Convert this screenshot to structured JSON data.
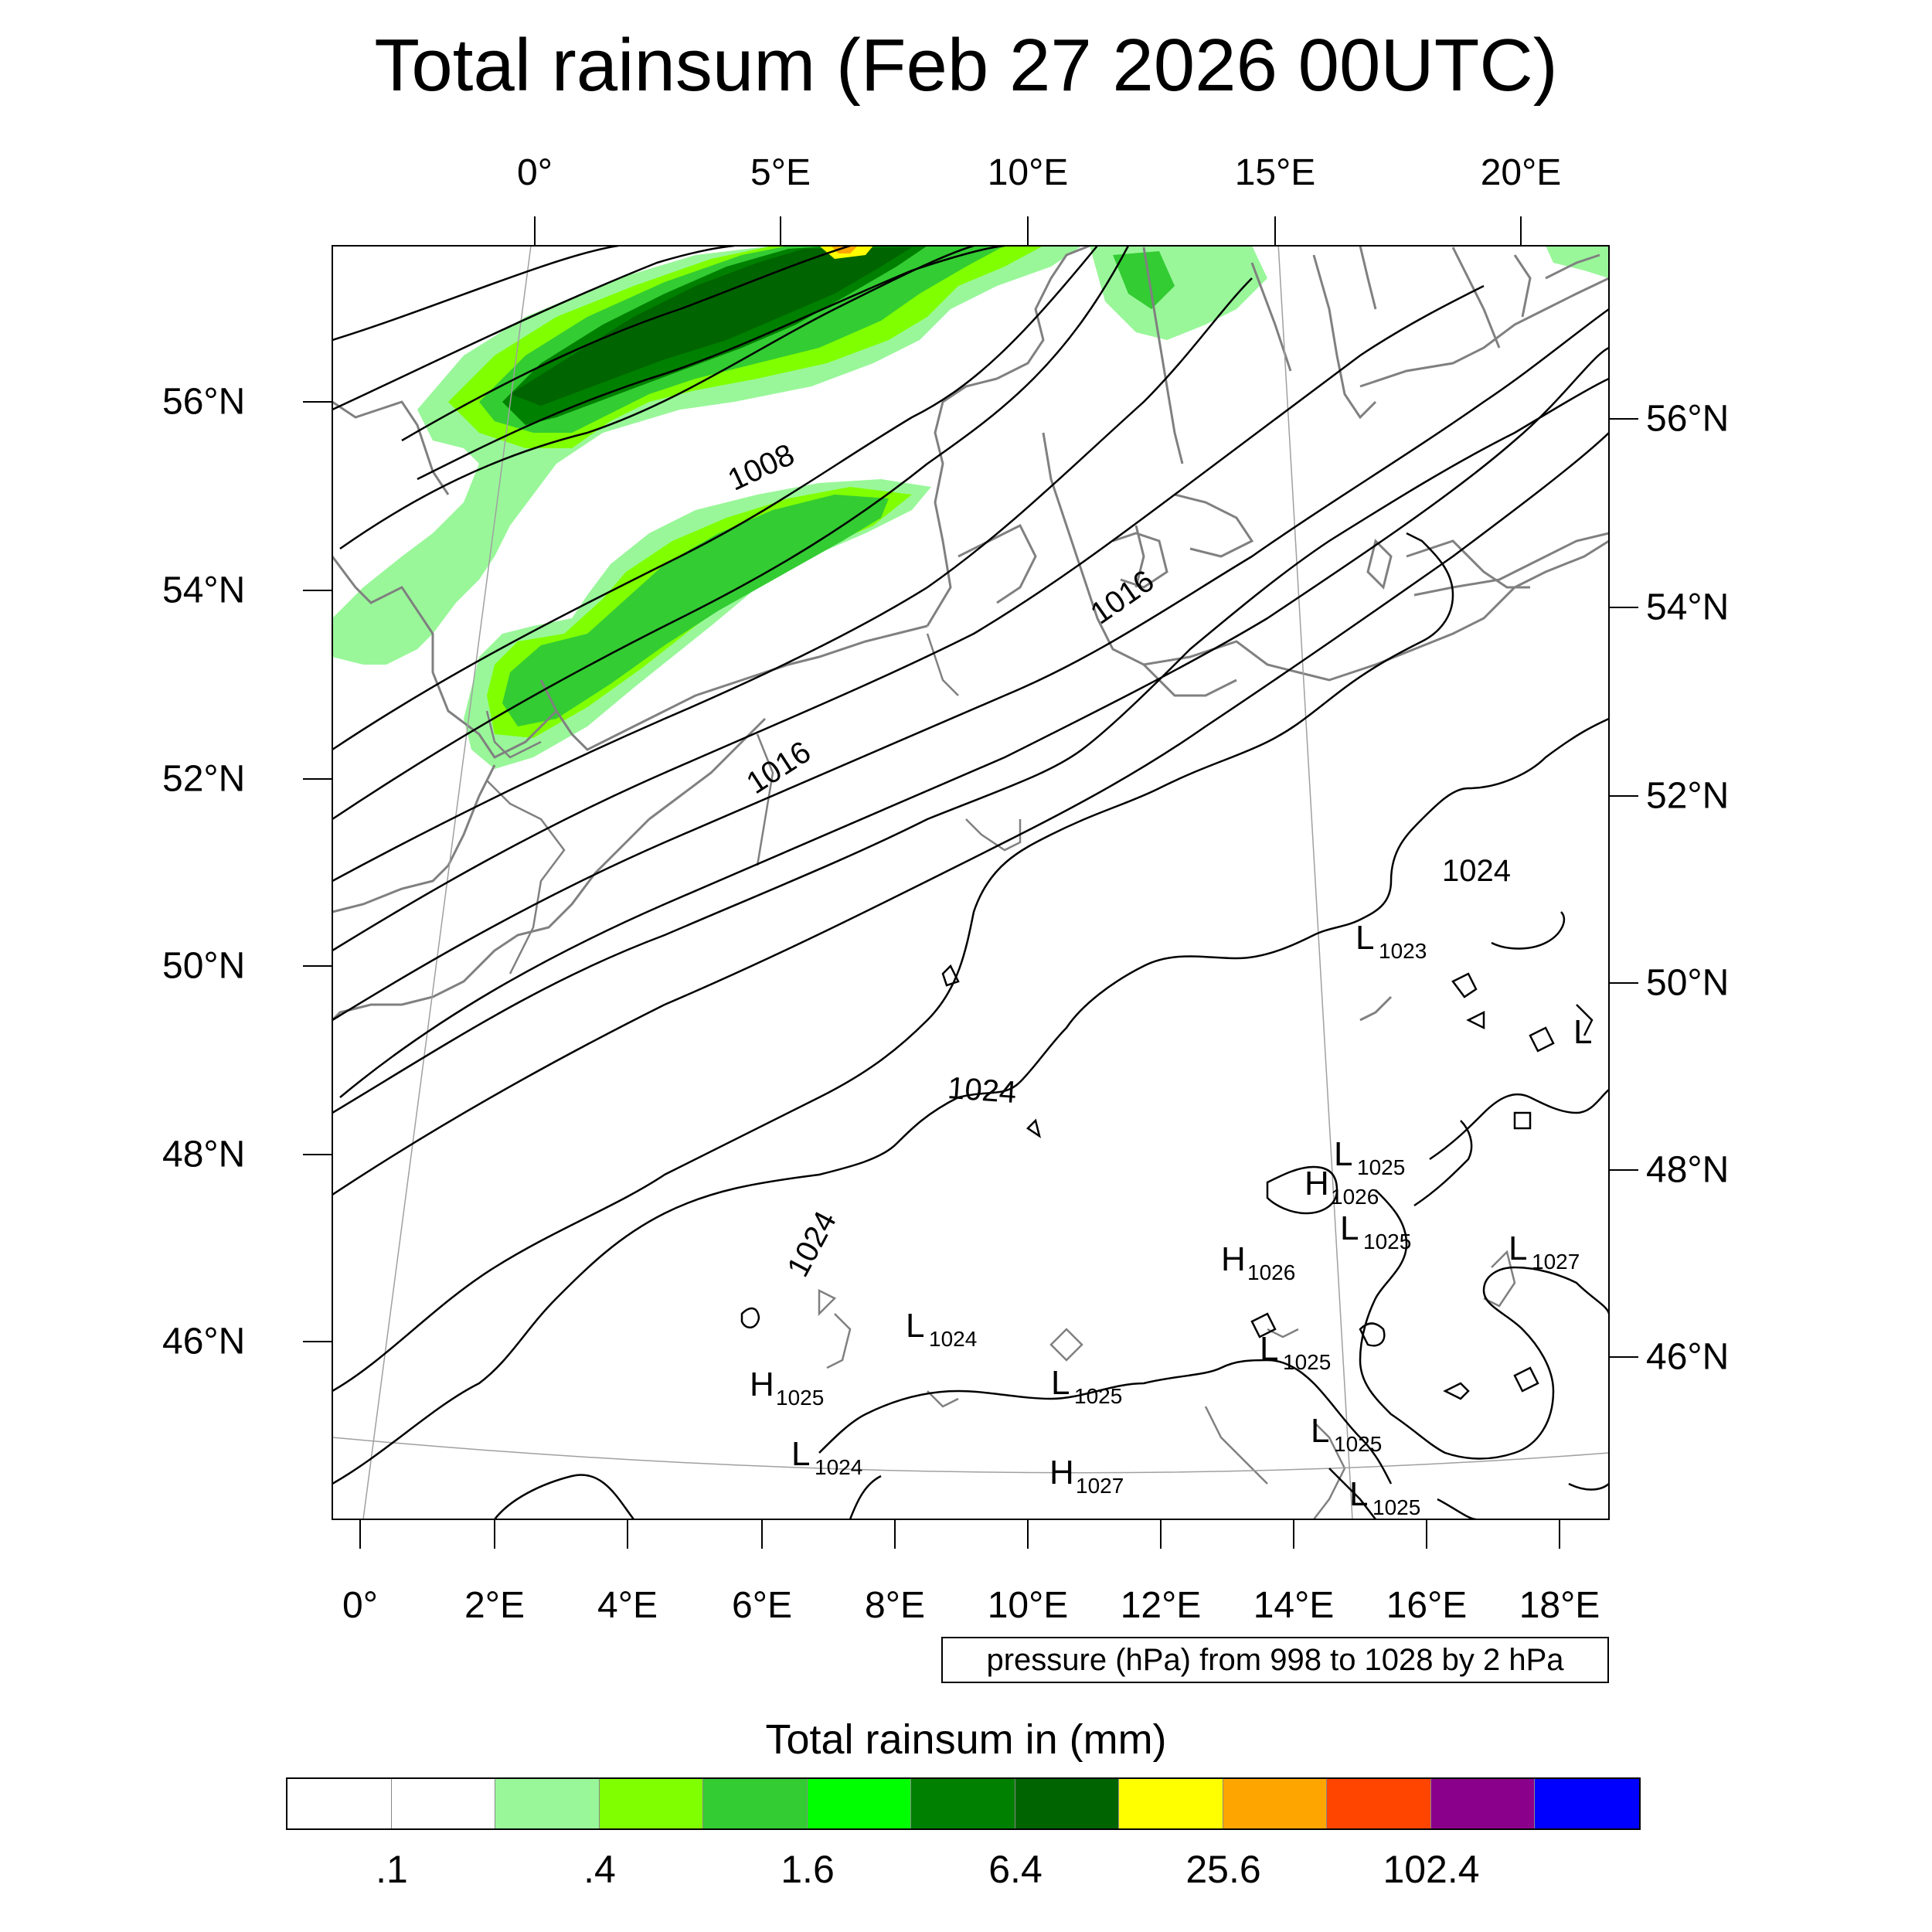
{
  "title": "Total rainsum (Feb 27 2026 00UTC)",
  "axes": {
    "top_lon_labels": [
      "0°",
      "5°E",
      "10°E",
      "15°E",
      "20°E"
    ],
    "bottom_lon_labels": [
      "0°",
      "2°E",
      "4°E",
      "6°E",
      "8°E",
      "10°E",
      "12°E",
      "14°E",
      "16°E",
      "18°E"
    ],
    "left_lat_labels": [
      "56°N",
      "54°N",
      "52°N",
      "50°N",
      "48°N",
      "46°N"
    ],
    "right_lat_labels": [
      "56°N",
      "54°N",
      "52°N",
      "50°N",
      "48°N",
      "46°N"
    ]
  },
  "isobar_labels": [
    {
      "text": "1008"
    },
    {
      "text": "1016"
    },
    {
      "text": "1016"
    },
    {
      "text": "1024"
    },
    {
      "text": "1024"
    },
    {
      "text": "1024"
    }
  ],
  "pressure_centers": [
    {
      "type": "L",
      "value": "1023"
    },
    {
      "type": "L",
      "value": "1025"
    },
    {
      "type": "H",
      "value": "1026"
    },
    {
      "type": "L",
      "value": "1025"
    },
    {
      "type": "H",
      "value": "1026"
    },
    {
      "type": "L",
      "value": "1027"
    },
    {
      "type": "L",
      "value": "1024"
    },
    {
      "type": "H",
      "value": "1025"
    },
    {
      "type": "L",
      "value": "1025"
    },
    {
      "type": "L",
      "value": "1025"
    },
    {
      "type": "L",
      "value": "1025"
    },
    {
      "type": "L",
      "value": "1024"
    },
    {
      "type": "H",
      "value": "1027"
    },
    {
      "type": "L",
      "value": "1025"
    },
    {
      "type": "L",
      "value": ""
    }
  ],
  "pressure_note": "pressure (hPa) from 998 to 1028 by 2 hPa",
  "colorbar": {
    "title": "Total rainsum in (mm)",
    "colors": [
      "#ffffff",
      "#ffffff",
      "#99f799",
      "#80ff00",
      "#33cc33",
      "#00ff00",
      "#008000",
      "#006400",
      "#ffff00",
      "#ffa500",
      "#ff4500",
      "#8b008b",
      "#0000ff"
    ],
    "labels": [
      ".1",
      ".4",
      "1.6",
      "6.4",
      "25.6",
      "102.4"
    ]
  },
  "rain_colors": {
    "light": "#99f799",
    "lime": "#80ff00",
    "medium": "#33cc33",
    "bright": "#00ff00",
    "green": "#008000",
    "dark": "#006400",
    "yellow": "#ffff00",
    "orange": "#ffa500"
  },
  "map_colors": {
    "coast": "#808080",
    "isobar": "#000000",
    "grid": "#a0a0a0"
  }
}
